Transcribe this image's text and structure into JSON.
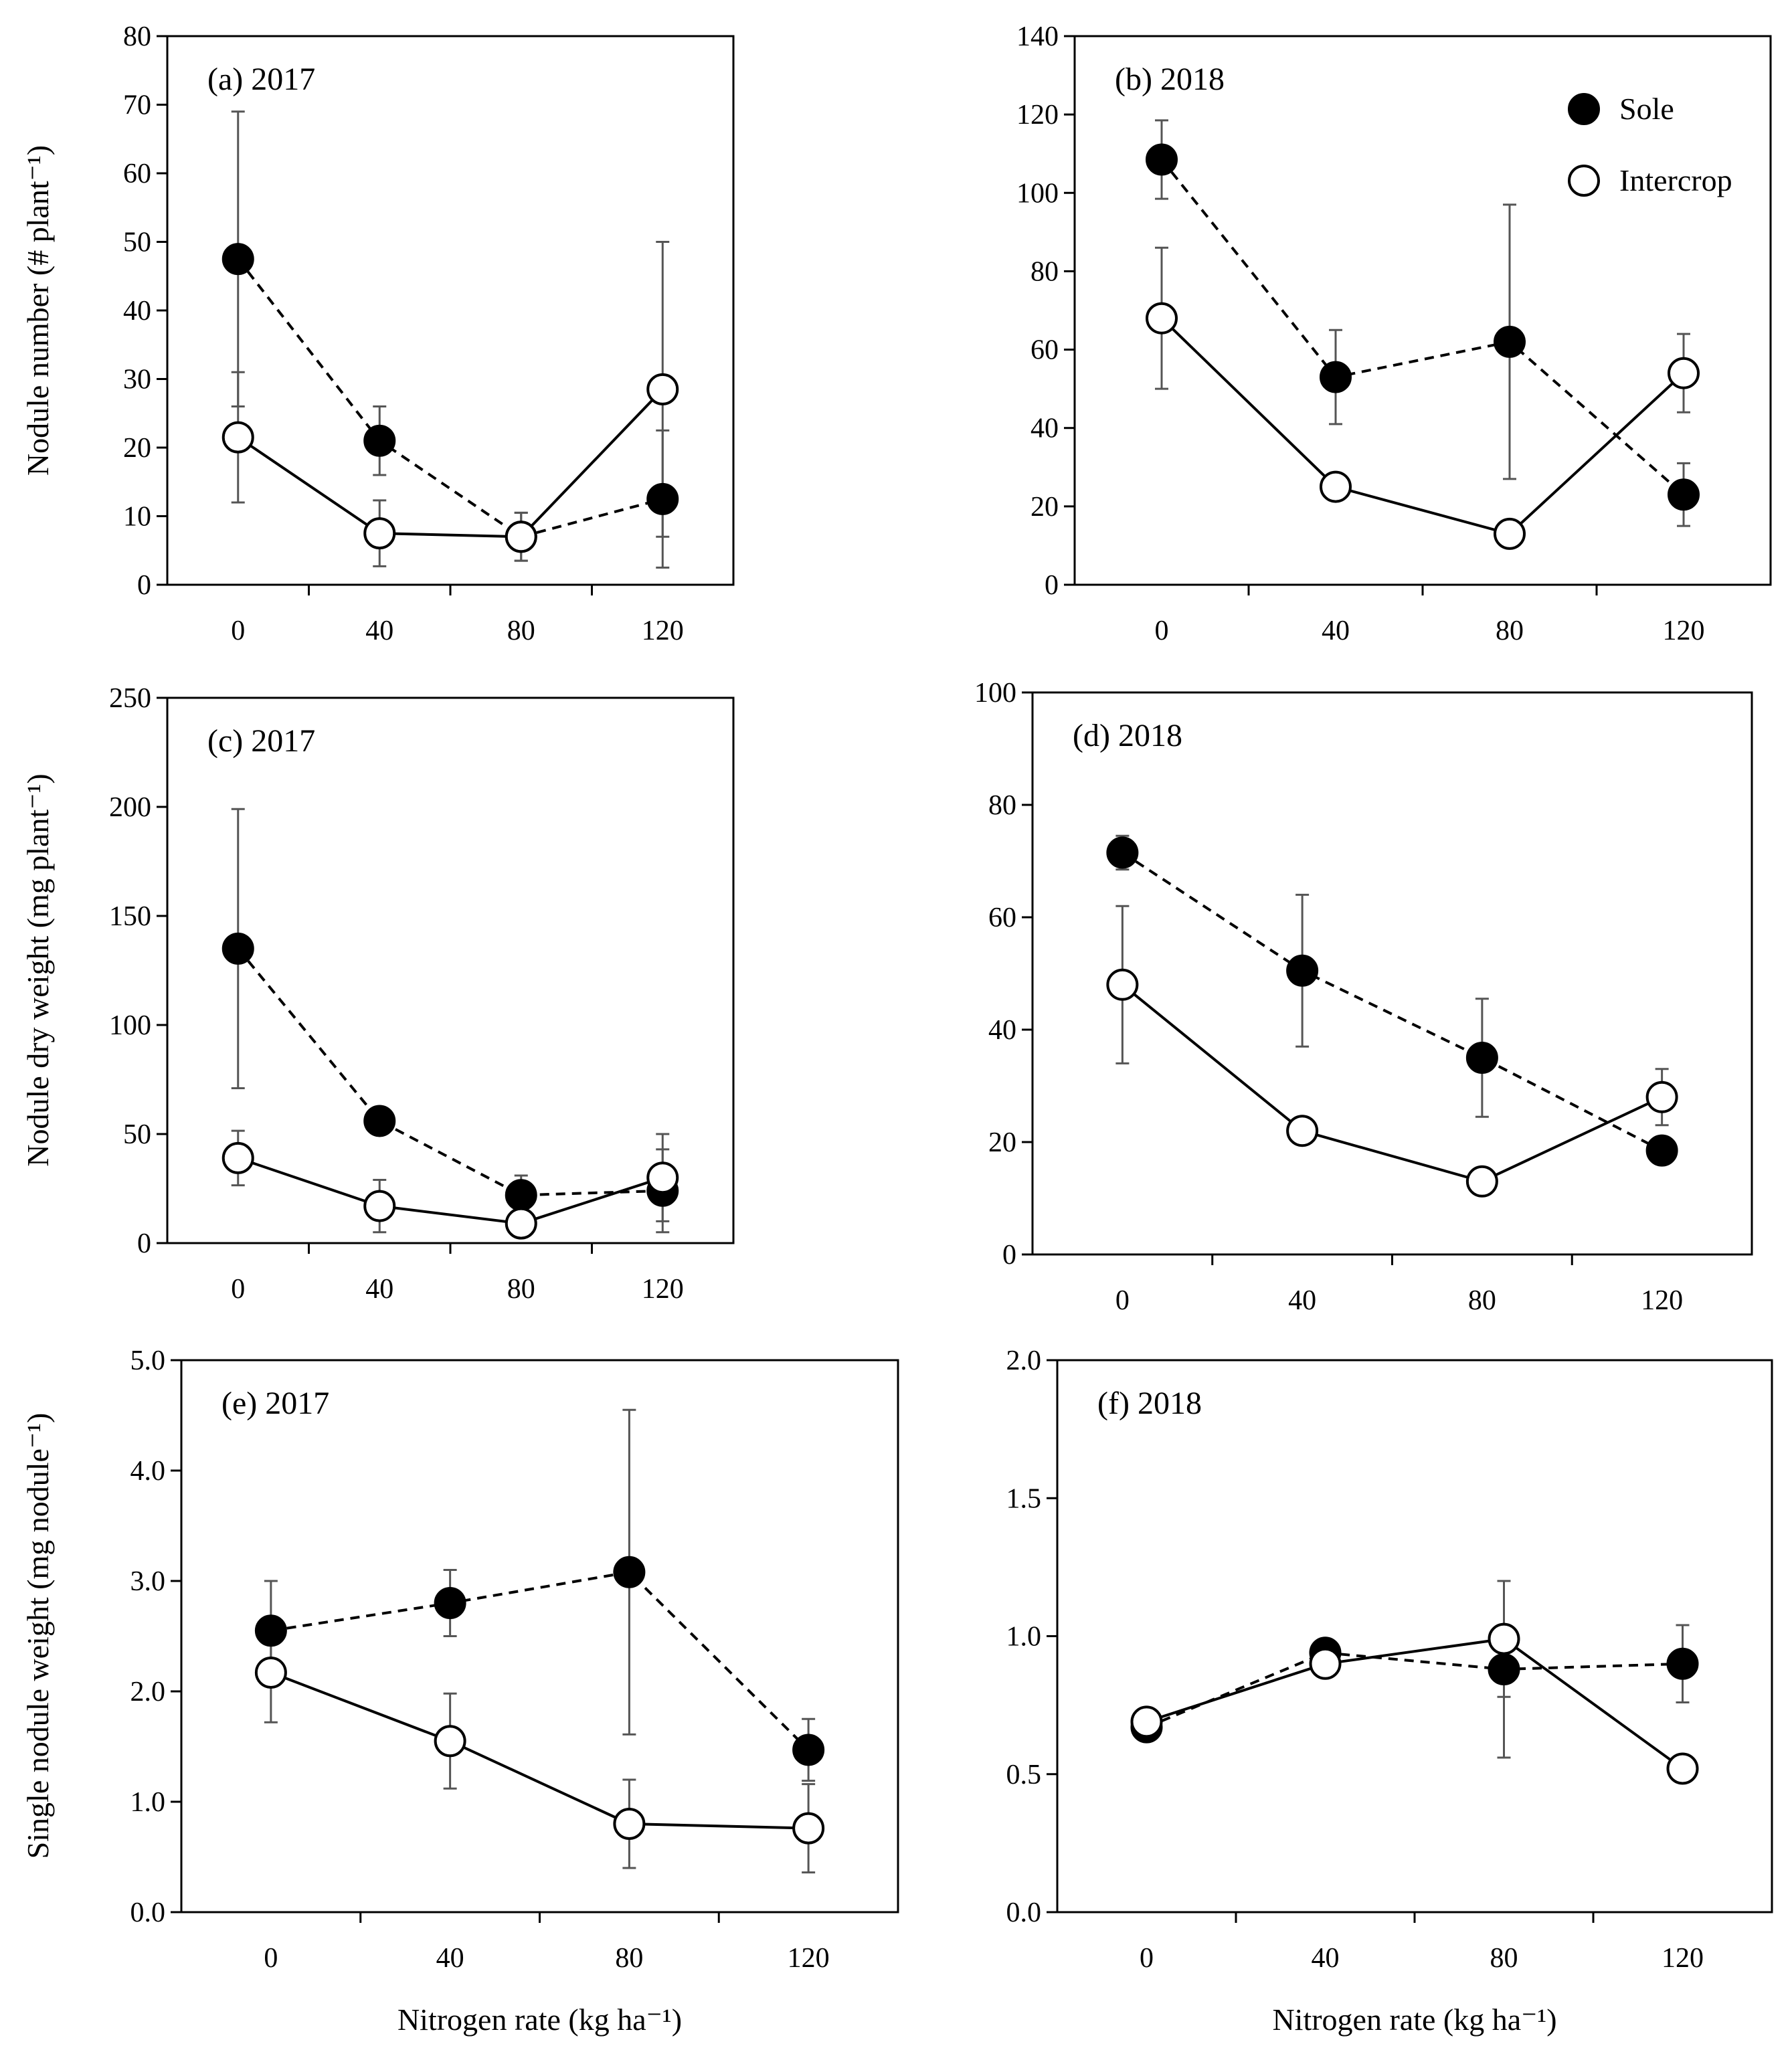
{
  "figure": {
    "legend": {
      "sole_label": "Sole",
      "intercrop_label": "Intercrop"
    }
  },
  "chart_data": [
    {
      "type": "line",
      "panel": "a",
      "title": "(a) 2017",
      "ylabel": "Nodule number (# plant⁻¹)",
      "xlabel": "",
      "categories": [
        "0",
        "40",
        "80",
        "120"
      ],
      "x": [
        0,
        40,
        80,
        120
      ],
      "xlim": [
        -20,
        140
      ],
      "ylim": [
        0,
        80
      ],
      "yticks": [
        0,
        10,
        20,
        30,
        40,
        50,
        60,
        70,
        80
      ],
      "ytick_labels": [
        "0",
        "10",
        "20",
        "30",
        "40",
        "50",
        "60",
        "70",
        "80"
      ],
      "series": [
        {
          "name": "Sole",
          "style": "dashed",
          "marker": "filled",
          "values": [
            47.5,
            21,
            7,
            12.5
          ],
          "err": [
            21.5,
            5,
            3.5,
            10
          ]
        },
        {
          "name": "Intercrop",
          "style": "solid",
          "marker": "open",
          "values": [
            21.5,
            7.5,
            7,
            28.5
          ],
          "err": [
            9.5,
            4.8,
            3.5,
            21.5
          ]
        }
      ]
    },
    {
      "type": "line",
      "panel": "b",
      "title": "(b) 2018",
      "ylabel": "",
      "xlabel": "",
      "categories": [
        "0",
        "40",
        "80",
        "120"
      ],
      "x": [
        0,
        40,
        80,
        120
      ],
      "xlim": [
        -20,
        140
      ],
      "ylim": [
        0,
        140
      ],
      "yticks": [
        0,
        20,
        40,
        60,
        80,
        100,
        120,
        140
      ],
      "ytick_labels": [
        "0",
        "20",
        "40",
        "60",
        "80",
        "100",
        "120",
        "140"
      ],
      "legend": true,
      "series": [
        {
          "name": "Sole",
          "style": "dashed",
          "marker": "filled",
          "values": [
            108.5,
            53,
            62,
            23
          ],
          "err": [
            10,
            12,
            35,
            8
          ]
        },
        {
          "name": "Intercrop",
          "style": "solid",
          "marker": "open",
          "values": [
            68,
            25,
            13,
            54
          ],
          "err": [
            18,
            0,
            0,
            10
          ]
        }
      ]
    },
    {
      "type": "line",
      "panel": "c",
      "title": "(c) 2017",
      "ylabel": "Nodule dry weight  (mg  plant⁻¹)",
      "xlabel": "",
      "categories": [
        "0",
        "40",
        "80",
        "120"
      ],
      "x": [
        0,
        40,
        80,
        120
      ],
      "xlim": [
        -20,
        140
      ],
      "ylim": [
        0,
        250
      ],
      "yticks": [
        0,
        50,
        100,
        150,
        200,
        250
      ],
      "ytick_labels": [
        "0",
        "50",
        "100",
        "150",
        "200",
        "250"
      ],
      "series": [
        {
          "name": "Sole",
          "style": "dashed",
          "marker": "filled",
          "values": [
            135,
            56,
            22,
            24
          ],
          "err": [
            64,
            6,
            9,
            19
          ]
        },
        {
          "name": "Intercrop",
          "style": "solid",
          "marker": "open",
          "values": [
            39,
            17,
            9,
            30
          ],
          "err": [
            12.5,
            12,
            0,
            20
          ]
        }
      ]
    },
    {
      "type": "line",
      "panel": "d",
      "title": "(d) 2018",
      "ylabel": "",
      "xlabel": "",
      "categories": [
        "0",
        "40",
        "80",
        "120"
      ],
      "x": [
        0,
        40,
        80,
        120
      ],
      "xlim": [
        -20,
        140
      ],
      "ylim": [
        0,
        100
      ],
      "yticks": [
        0,
        20,
        40,
        60,
        80,
        100
      ],
      "ytick_labels": [
        "0",
        "20",
        "40",
        "60",
        "80",
        "100"
      ],
      "series": [
        {
          "name": "Sole",
          "style": "dashed",
          "marker": "filled",
          "values": [
            71.5,
            50.5,
            35,
            18.5
          ],
          "err": [
            3,
            13.5,
            10.5,
            0
          ]
        },
        {
          "name": "Intercrop",
          "style": "solid",
          "marker": "open",
          "values": [
            48,
            22,
            13,
            28
          ],
          "err": [
            14,
            0,
            0,
            5
          ]
        }
      ]
    },
    {
      "type": "line",
      "panel": "e",
      "title": "(e) 2017",
      "ylabel": "Single nodule weight (mg  nodule⁻¹)",
      "xlabel": "Nitrogen rate (kg ha⁻¹)",
      "categories": [
        "0",
        "40",
        "80",
        "120"
      ],
      "x": [
        0,
        40,
        80,
        120
      ],
      "xlim": [
        -20,
        140
      ],
      "ylim": [
        0,
        5
      ],
      "yticks": [
        0,
        1,
        2,
        3,
        4,
        5
      ],
      "ytick_labels": [
        "0.0",
        "1.0",
        "2.0",
        "3.0",
        "4.0",
        "5.0"
      ],
      "series": [
        {
          "name": "Sole",
          "style": "dashed",
          "marker": "filled",
          "values": [
            2.55,
            2.8,
            3.08,
            1.47
          ],
          "err": [
            0.45,
            0.3,
            1.47,
            0.28
          ]
        },
        {
          "name": "Intercrop",
          "style": "solid",
          "marker": "open",
          "values": [
            2.17,
            1.55,
            0.8,
            0.76
          ],
          "err": [
            0.45,
            0.43,
            0.4,
            0.4
          ]
        }
      ]
    },
    {
      "type": "line",
      "panel": "f",
      "title": "(f) 2018",
      "ylabel": "",
      "xlabel": "Nitrogen rate (kg ha⁻¹)",
      "categories": [
        "0",
        "40",
        "80",
        "120"
      ],
      "x": [
        0,
        40,
        80,
        120
      ],
      "xlim": [
        -20,
        140
      ],
      "ylim": [
        0,
        2
      ],
      "yticks": [
        0,
        0.5,
        1,
        1.5,
        2
      ],
      "ytick_labels": [
        "0.0",
        "0.5",
        "1.0",
        "1.5",
        "2.0"
      ],
      "series": [
        {
          "name": "Sole",
          "style": "dashed",
          "marker": "filled",
          "values": [
            0.67,
            0.94,
            0.88,
            0.9
          ],
          "err": [
            0,
            0,
            0.32,
            0.14
          ]
        },
        {
          "name": "Intercrop",
          "style": "solid",
          "marker": "open",
          "values": [
            0.69,
            0.9,
            0.99,
            0.52
          ],
          "err": [
            0,
            0,
            0.21,
            0
          ]
        }
      ]
    }
  ]
}
